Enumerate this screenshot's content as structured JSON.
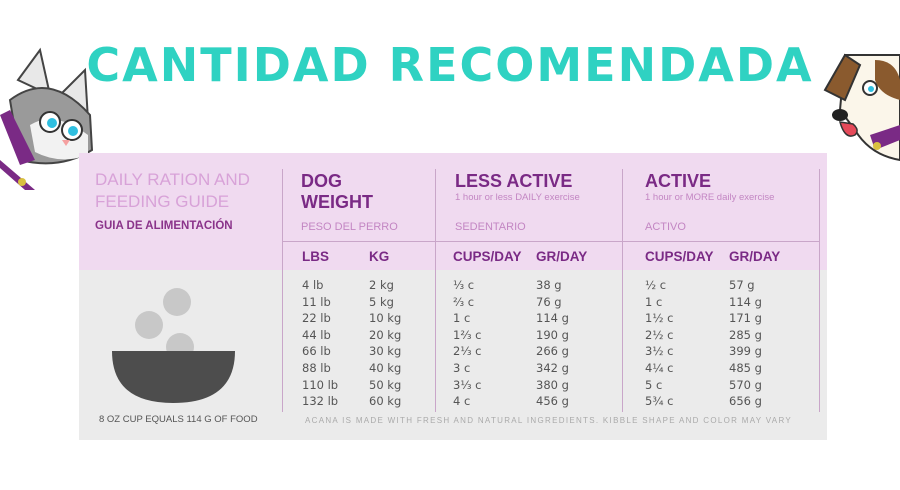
{
  "banner": {
    "title": "CANTIDAD RECOMENDADA"
  },
  "guide": {
    "title": "DAILY RATION AND FEEDING GUIDE",
    "subtitle": "GUIA DE ALIMENTACIÓN",
    "footnote": "8 OZ CUP EQUALS 114 G OF FOOD",
    "disclaimer": "ACANA IS MADE WITH FRESH AND NATURAL INGREDIENTS. KIBBLE SHAPE AND COLOR MAY VARY"
  },
  "columns": {
    "weight": {
      "title_line1": "DOG",
      "title_line2": "WEIGHT",
      "sub": "PESO DEL PERRO",
      "unit1": "LBS",
      "unit2": "KG"
    },
    "less_active": {
      "title": "LESS ACTIVE",
      "note": "1 hour or less DAILY exercise",
      "sub": "SEDENTARIO",
      "unit1": "CUPS/DAY",
      "unit2": "GR/DAY"
    },
    "active": {
      "title": "ACTIVE",
      "note": "1 hour or MORE daily exercise",
      "sub": "ACTIVO",
      "unit1": "CUPS/DAY",
      "unit2": "GR/DAY"
    }
  },
  "rows": {
    "lbs": [
      "4 lb",
      "11 lb",
      "22 lb",
      "44 lb",
      "66 lb",
      "88 lb",
      "110 lb",
      "132 lb"
    ],
    "kg": [
      "2 kg",
      "5 kg",
      "10 kg",
      "20 kg",
      "30 kg",
      "40 kg",
      "50 kg",
      "60 kg"
    ],
    "less_cups": [
      "⅓ c",
      "⅔ c",
      "1 c",
      "1⅔ c",
      "2⅓ c",
      "3 c",
      "3⅓ c",
      "4 c"
    ],
    "less_gr": [
      "38 g",
      "76 g",
      "114 g",
      "190 g",
      "266 g",
      "342 g",
      "380 g",
      "456 g"
    ],
    "active_cups": [
      "½ c",
      "1 c",
      "1½ c",
      "2½ c",
      "3½ c",
      "4¼ c",
      "5 c",
      "5¾ c"
    ],
    "active_gr": [
      "57 g",
      "114 g",
      "171 g",
      "285 g",
      "399 g",
      "485 g",
      "570 g",
      "656 g"
    ]
  },
  "colors": {
    "banner": "#2fd2c2",
    "header_bg": "#f0daf0",
    "accent": "#7a2a85",
    "card_bg": "#ebebeb"
  },
  "icons": {
    "left_mascot": "cat-mascot-icon",
    "right_mascot": "dog-mascot-icon",
    "bowl": "food-bowl-icon"
  }
}
